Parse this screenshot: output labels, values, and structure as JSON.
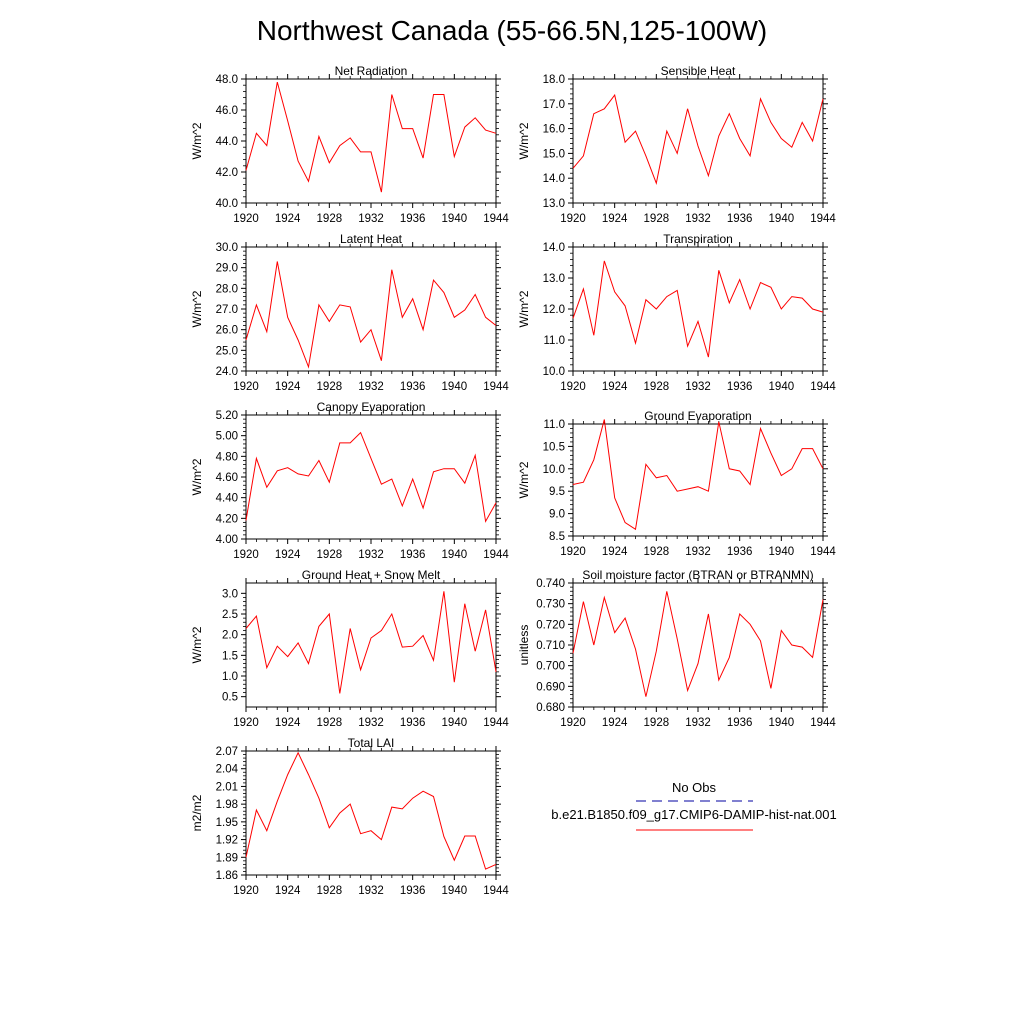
{
  "figure": {
    "title": "Northwest Canada (55-66.5N,125-100W)"
  },
  "legend": {
    "obs_label": "No Obs",
    "model_label": "b.e21.B1850.f09_g17.CMIP6-DAMIP-hist-nat.001",
    "obs_color": "#0000a0",
    "model_color": "#ff0000"
  },
  "chart_data": [
    {
      "type": "line",
      "title": "Net Radiation",
      "ylabel": "W/m^2",
      "xlim": [
        1920,
        1944
      ],
      "ylim": [
        40.0,
        48.0
      ],
      "yticks": [
        "40.0",
        "42.0",
        "44.0",
        "46.0",
        "48.0"
      ],
      "xticks": [
        "1920",
        "1924",
        "1928",
        "1932",
        "1936",
        "1940",
        "1944"
      ],
      "x": [
        1920,
        1921,
        1922,
        1923,
        1924,
        1925,
        1926,
        1927,
        1928,
        1929,
        1930,
        1931,
        1932,
        1933,
        1934,
        1935,
        1936,
        1937,
        1938,
        1939,
        1940,
        1941,
        1942,
        1943,
        1944
      ],
      "series": [
        {
          "name": "b.e21.B1850.f09_g17.CMIP6-DAMIP-hist-nat.001",
          "color": "#ff0000",
          "values": [
            42.1,
            44.5,
            43.7,
            47.8,
            45.3,
            42.7,
            41.4,
            44.3,
            42.6,
            43.7,
            44.2,
            43.3,
            43.3,
            40.7,
            47.0,
            44.8,
            44.8,
            42.9,
            47.0,
            47.0,
            43.0,
            44.9,
            45.5,
            44.7,
            44.5
          ]
        }
      ]
    },
    {
      "type": "line",
      "title": "Sensible Heat",
      "ylabel": "W/m^2",
      "xlim": [
        1920,
        1944
      ],
      "ylim": [
        13.0,
        18.0
      ],
      "yticks": [
        "13.0",
        "14.0",
        "15.0",
        "16.0",
        "17.0",
        "18.0"
      ],
      "xticks": [
        "1920",
        "1924",
        "1928",
        "1932",
        "1936",
        "1940",
        "1944"
      ],
      "x": [
        1920,
        1921,
        1922,
        1923,
        1924,
        1925,
        1926,
        1927,
        1928,
        1929,
        1930,
        1931,
        1932,
        1933,
        1934,
        1935,
        1936,
        1937,
        1938,
        1939,
        1940,
        1941,
        1942,
        1943,
        1944
      ],
      "series": [
        {
          "name": "b.e21.B1850.f09_g17.CMIP6-DAMIP-hist-nat.001",
          "color": "#ff0000",
          "values": [
            14.4,
            14.9,
            16.6,
            16.8,
            17.35,
            15.45,
            15.9,
            14.9,
            13.8,
            15.9,
            15.0,
            16.8,
            15.3,
            14.1,
            15.7,
            16.6,
            15.6,
            14.9,
            17.2,
            16.25,
            15.6,
            15.25,
            16.25,
            15.5,
            17.2
          ]
        }
      ]
    },
    {
      "type": "line",
      "title": "Latent Heat",
      "ylabel": "W/m^2",
      "xlim": [
        1920,
        1944
      ],
      "ylim": [
        24.0,
        30.0
      ],
      "yticks": [
        "24.0",
        "25.0",
        "26.0",
        "27.0",
        "28.0",
        "29.0",
        "30.0"
      ],
      "xticks": [
        "1920",
        "1924",
        "1928",
        "1932",
        "1936",
        "1940",
        "1944"
      ],
      "x": [
        1920,
        1921,
        1922,
        1923,
        1924,
        1925,
        1926,
        1927,
        1928,
        1929,
        1930,
        1931,
        1932,
        1933,
        1934,
        1935,
        1936,
        1937,
        1938,
        1939,
        1940,
        1941,
        1942,
        1943,
        1944
      ],
      "series": [
        {
          "name": "b.e21.B1850.f09_g17.CMIP6-DAMIP-hist-nat.001",
          "color": "#ff0000",
          "values": [
            25.5,
            27.2,
            25.9,
            29.3,
            26.6,
            25.5,
            24.2,
            27.2,
            26.4,
            27.2,
            27.1,
            25.4,
            26.0,
            24.5,
            28.9,
            26.6,
            27.5,
            26.0,
            28.4,
            27.8,
            26.6,
            26.95,
            27.7,
            26.6,
            26.2
          ]
        }
      ]
    },
    {
      "type": "line",
      "title": "Transpiration",
      "ylabel": "W/m^2",
      "xlim": [
        1920,
        1944
      ],
      "ylim": [
        10.0,
        14.0
      ],
      "yticks": [
        "10.0",
        "11.0",
        "12.0",
        "13.0",
        "14.0"
      ],
      "xticks": [
        "1920",
        "1924",
        "1928",
        "1932",
        "1936",
        "1940",
        "1944"
      ],
      "x": [
        1920,
        1921,
        1922,
        1923,
        1924,
        1925,
        1926,
        1927,
        1928,
        1929,
        1930,
        1931,
        1932,
        1933,
        1934,
        1935,
        1936,
        1937,
        1938,
        1939,
        1940,
        1941,
        1942,
        1943,
        1944
      ],
      "series": [
        {
          "name": "b.e21.B1850.f09_g17.CMIP6-DAMIP-hist-nat.001",
          "color": "#ff0000",
          "values": [
            11.7,
            12.65,
            11.15,
            13.55,
            12.55,
            12.1,
            10.9,
            12.3,
            12.0,
            12.4,
            12.6,
            10.8,
            11.6,
            10.45,
            13.25,
            12.2,
            12.95,
            12.0,
            12.85,
            12.7,
            12.0,
            12.4,
            12.35,
            12.0,
            11.9
          ]
        }
      ]
    },
    {
      "type": "line",
      "title": "Canopy Evaporation",
      "ylabel": "W/m^2",
      "xlim": [
        1920,
        1944
      ],
      "ylim": [
        4.0,
        5.2
      ],
      "yticks": [
        "4.00",
        "4.20",
        "4.40",
        "4.60",
        "4.80",
        "5.00",
        "5.20"
      ],
      "xticks": [
        "1920",
        "1924",
        "1928",
        "1932",
        "1936",
        "1940",
        "1944"
      ],
      "x": [
        1920,
        1921,
        1922,
        1923,
        1924,
        1925,
        1926,
        1927,
        1928,
        1929,
        1930,
        1931,
        1932,
        1933,
        1934,
        1935,
        1936,
        1937,
        1938,
        1939,
        1940,
        1941,
        1942,
        1943,
        1944
      ],
      "series": [
        {
          "name": "b.e21.B1850.f09_g17.CMIP6-DAMIP-hist-nat.001",
          "color": "#ff0000",
          "values": [
            4.18,
            4.78,
            4.5,
            4.66,
            4.69,
            4.63,
            4.61,
            4.76,
            4.55,
            4.93,
            4.93,
            5.03,
            4.78,
            4.53,
            4.58,
            4.32,
            4.58,
            4.3,
            4.65,
            4.68,
            4.68,
            4.54,
            4.81,
            4.17,
            4.35
          ]
        }
      ]
    },
    {
      "type": "line",
      "title": "Ground Evaporation",
      "ylabel": "W/m^2",
      "xlim": [
        1920,
        1944
      ],
      "ylim": [
        8.5,
        11.0
      ],
      "yticks": [
        "8.5",
        "9.0",
        "9.5",
        "10.0",
        "10.5",
        "11.0"
      ],
      "xticks": [
        "1920",
        "1924",
        "1928",
        "1932",
        "1936",
        "1940",
        "1944"
      ],
      "x": [
        1920,
        1921,
        1922,
        1923,
        1924,
        1925,
        1926,
        1927,
        1928,
        1929,
        1930,
        1931,
        1932,
        1933,
        1934,
        1935,
        1936,
        1937,
        1938,
        1939,
        1940,
        1941,
        1942,
        1943,
        1944
      ],
      "series": [
        {
          "name": "b.e21.B1850.f09_g17.CMIP6-DAMIP-hist-nat.001",
          "color": "#ff0000",
          "values": [
            9.65,
            9.7,
            10.2,
            11.1,
            9.35,
            8.8,
            8.65,
            10.1,
            9.8,
            9.85,
            9.5,
            9.55,
            9.6,
            9.5,
            11.05,
            10.0,
            9.95,
            9.65,
            10.9,
            10.35,
            9.85,
            10.0,
            10.45,
            10.45,
            10.0
          ]
        }
      ]
    },
    {
      "type": "line",
      "title": "Ground Heat + Snow Melt",
      "ylabel": "W/m^2",
      "xlim": [
        1920,
        1944
      ],
      "ylim": [
        0.25,
        3.25
      ],
      "yticks": [
        "0.5",
        "1.0",
        "1.5",
        "2.0",
        "2.5",
        "3.0"
      ],
      "ytick_values": [
        0.5,
        1.0,
        1.5,
        2.0,
        2.5,
        3.0
      ],
      "xticks": [
        "1920",
        "1924",
        "1928",
        "1932",
        "1936",
        "1940",
        "1944"
      ],
      "x": [
        1920,
        1921,
        1922,
        1923,
        1924,
        1925,
        1926,
        1927,
        1928,
        1929,
        1930,
        1931,
        1932,
        1933,
        1934,
        1935,
        1936,
        1937,
        1938,
        1939,
        1940,
        1941,
        1942,
        1943,
        1944
      ],
      "series": [
        {
          "name": "b.e21.B1850.f09_g17.CMIP6-DAMIP-hist-nat.001",
          "color": "#ff0000",
          "values": [
            2.15,
            2.45,
            1.2,
            1.72,
            1.47,
            1.8,
            1.3,
            2.2,
            2.5,
            0.58,
            2.15,
            1.15,
            1.92,
            2.1,
            2.5,
            1.7,
            1.72,
            1.98,
            1.38,
            3.05,
            0.85,
            2.75,
            1.6,
            2.6,
            1.1
          ]
        }
      ]
    },
    {
      "type": "line",
      "title": "Soil moisture factor (BTRAN or BTRANMN)",
      "ylabel": "unitless",
      "xlim": [
        1920,
        1944
      ],
      "ylim": [
        0.68,
        0.74
      ],
      "yticks": [
        "0.680",
        "0.690",
        "0.700",
        "0.710",
        "0.720",
        "0.730",
        "0.740"
      ],
      "xticks": [
        "1920",
        "1924",
        "1928",
        "1932",
        "1936",
        "1940",
        "1944"
      ],
      "x": [
        1920,
        1921,
        1922,
        1923,
        1924,
        1925,
        1926,
        1927,
        1928,
        1929,
        1930,
        1931,
        1932,
        1933,
        1934,
        1935,
        1936,
        1937,
        1938,
        1939,
        1940,
        1941,
        1942,
        1943,
        1944
      ],
      "series": [
        {
          "name": "b.e21.B1850.f09_g17.CMIP6-DAMIP-hist-nat.001",
          "color": "#ff0000",
          "values": [
            0.706,
            0.731,
            0.71,
            0.733,
            0.716,
            0.723,
            0.708,
            0.685,
            0.707,
            0.736,
            0.713,
            0.688,
            0.701,
            0.725,
            0.693,
            0.704,
            0.725,
            0.72,
            0.712,
            0.689,
            0.717,
            0.71,
            0.709,
            0.704,
            0.732
          ]
        }
      ]
    },
    {
      "type": "line",
      "title": "Total LAI",
      "ylabel": "m2/m2",
      "xlim": [
        1920,
        1944
      ],
      "ylim": [
        1.86,
        2.07
      ],
      "yticks": [
        "1.86",
        "1.89",
        "1.92",
        "1.95",
        "1.98",
        "2.01",
        "2.04",
        "2.07"
      ],
      "xticks": [
        "1920",
        "1924",
        "1928",
        "1932",
        "1936",
        "1940",
        "1944"
      ],
      "x": [
        1920,
        1921,
        1922,
        1923,
        1924,
        1925,
        1926,
        1927,
        1928,
        1929,
        1930,
        1931,
        1932,
        1933,
        1934,
        1935,
        1936,
        1937,
        1938,
        1939,
        1940,
        1941,
        1942,
        1943,
        1944
      ],
      "series": [
        {
          "name": "b.e21.B1850.f09_g17.CMIP6-DAMIP-hist-nat.001",
          "color": "#ff0000",
          "values": [
            1.89,
            1.97,
            1.935,
            1.985,
            2.03,
            2.067,
            2.03,
            1.99,
            1.94,
            1.965,
            1.98,
            1.93,
            1.935,
            1.92,
            1.975,
            1.972,
            1.99,
            2.002,
            1.993,
            1.925,
            1.885,
            1.926,
            1.926,
            1.87,
            1.878
          ]
        }
      ]
    }
  ]
}
